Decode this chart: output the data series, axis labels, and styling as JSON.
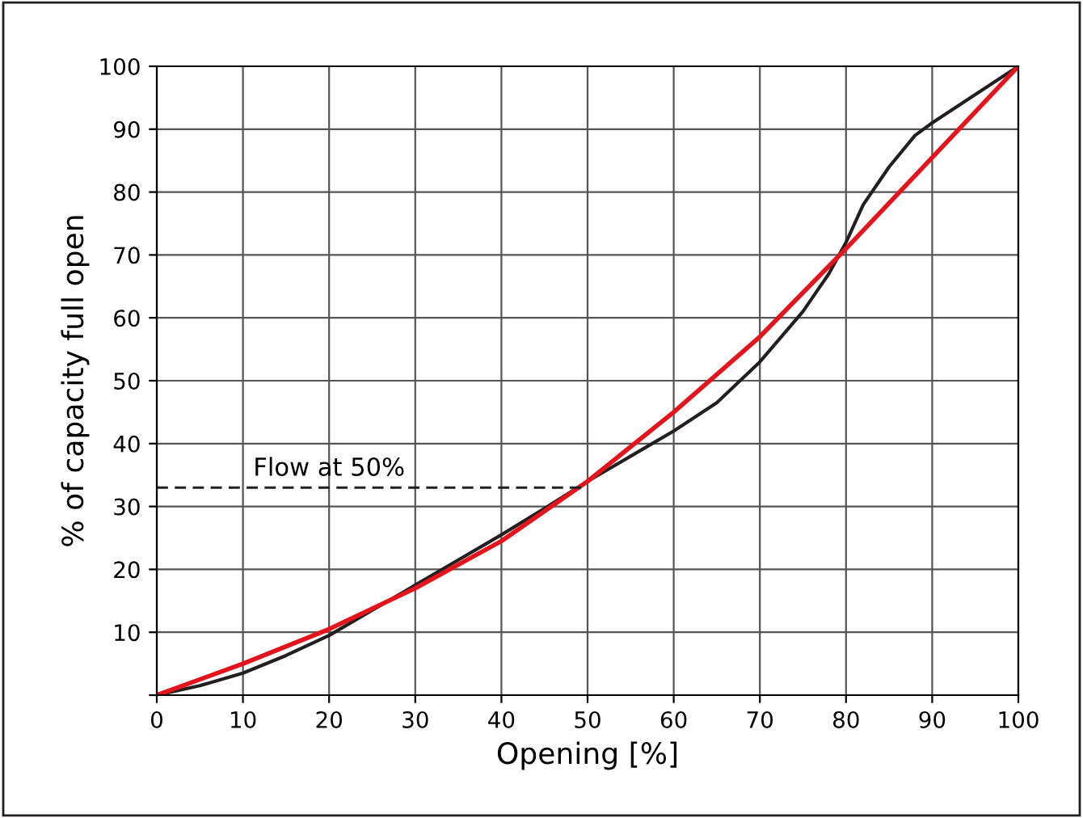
{
  "chart_data": {
    "type": "line",
    "xlabel": "Opening [%]",
    "ylabel": "% of capacity full open",
    "series": [
      {
        "color": "#231f20",
        "x": [
          0,
          5,
          10,
          15,
          20,
          25,
          30,
          35,
          40,
          45,
          50,
          55,
          60,
          65,
          70,
          75,
          78,
          80,
          82,
          85,
          88,
          90,
          95,
          100
        ],
        "values": [
          0,
          1.5,
          3.5,
          6.3,
          9.5,
          13.5,
          17.5,
          21.5,
          25.5,
          29.7,
          34,
          38,
          42,
          46.5,
          53,
          61,
          67,
          72,
          78,
          84,
          89,
          91,
          95.5,
          100
        ]
      },
      {
        "color": "#e3141b",
        "x": [
          0,
          10,
          20,
          30,
          40,
          50,
          60,
          70,
          80,
          90,
          100
        ],
        "values": [
          0,
          5,
          10.5,
          17,
          24.5,
          34,
          45,
          57,
          71,
          85.5,
          100
        ]
      },
      {
        "color": "#231f20",
        "line_style": "dashed",
        "x": [
          0,
          50
        ],
        "values": [
          33,
          33
        ]
      }
    ],
    "annotations": [
      {
        "text": "Flow at 50%",
        "x": 20,
        "y": 33
      }
    ],
    "xlim": [
      0,
      100
    ],
    "ylim": [
      0,
      100
    ],
    "xticks": [
      0,
      10,
      20,
      30,
      40,
      50,
      60,
      70,
      80,
      90,
      100
    ],
    "yticks": [
      {
        "value": 0,
        "label": null
      },
      10,
      20,
      30,
      40,
      50,
      60,
      70,
      80,
      90,
      100
    ],
    "grid": true,
    "legend": false
  }
}
